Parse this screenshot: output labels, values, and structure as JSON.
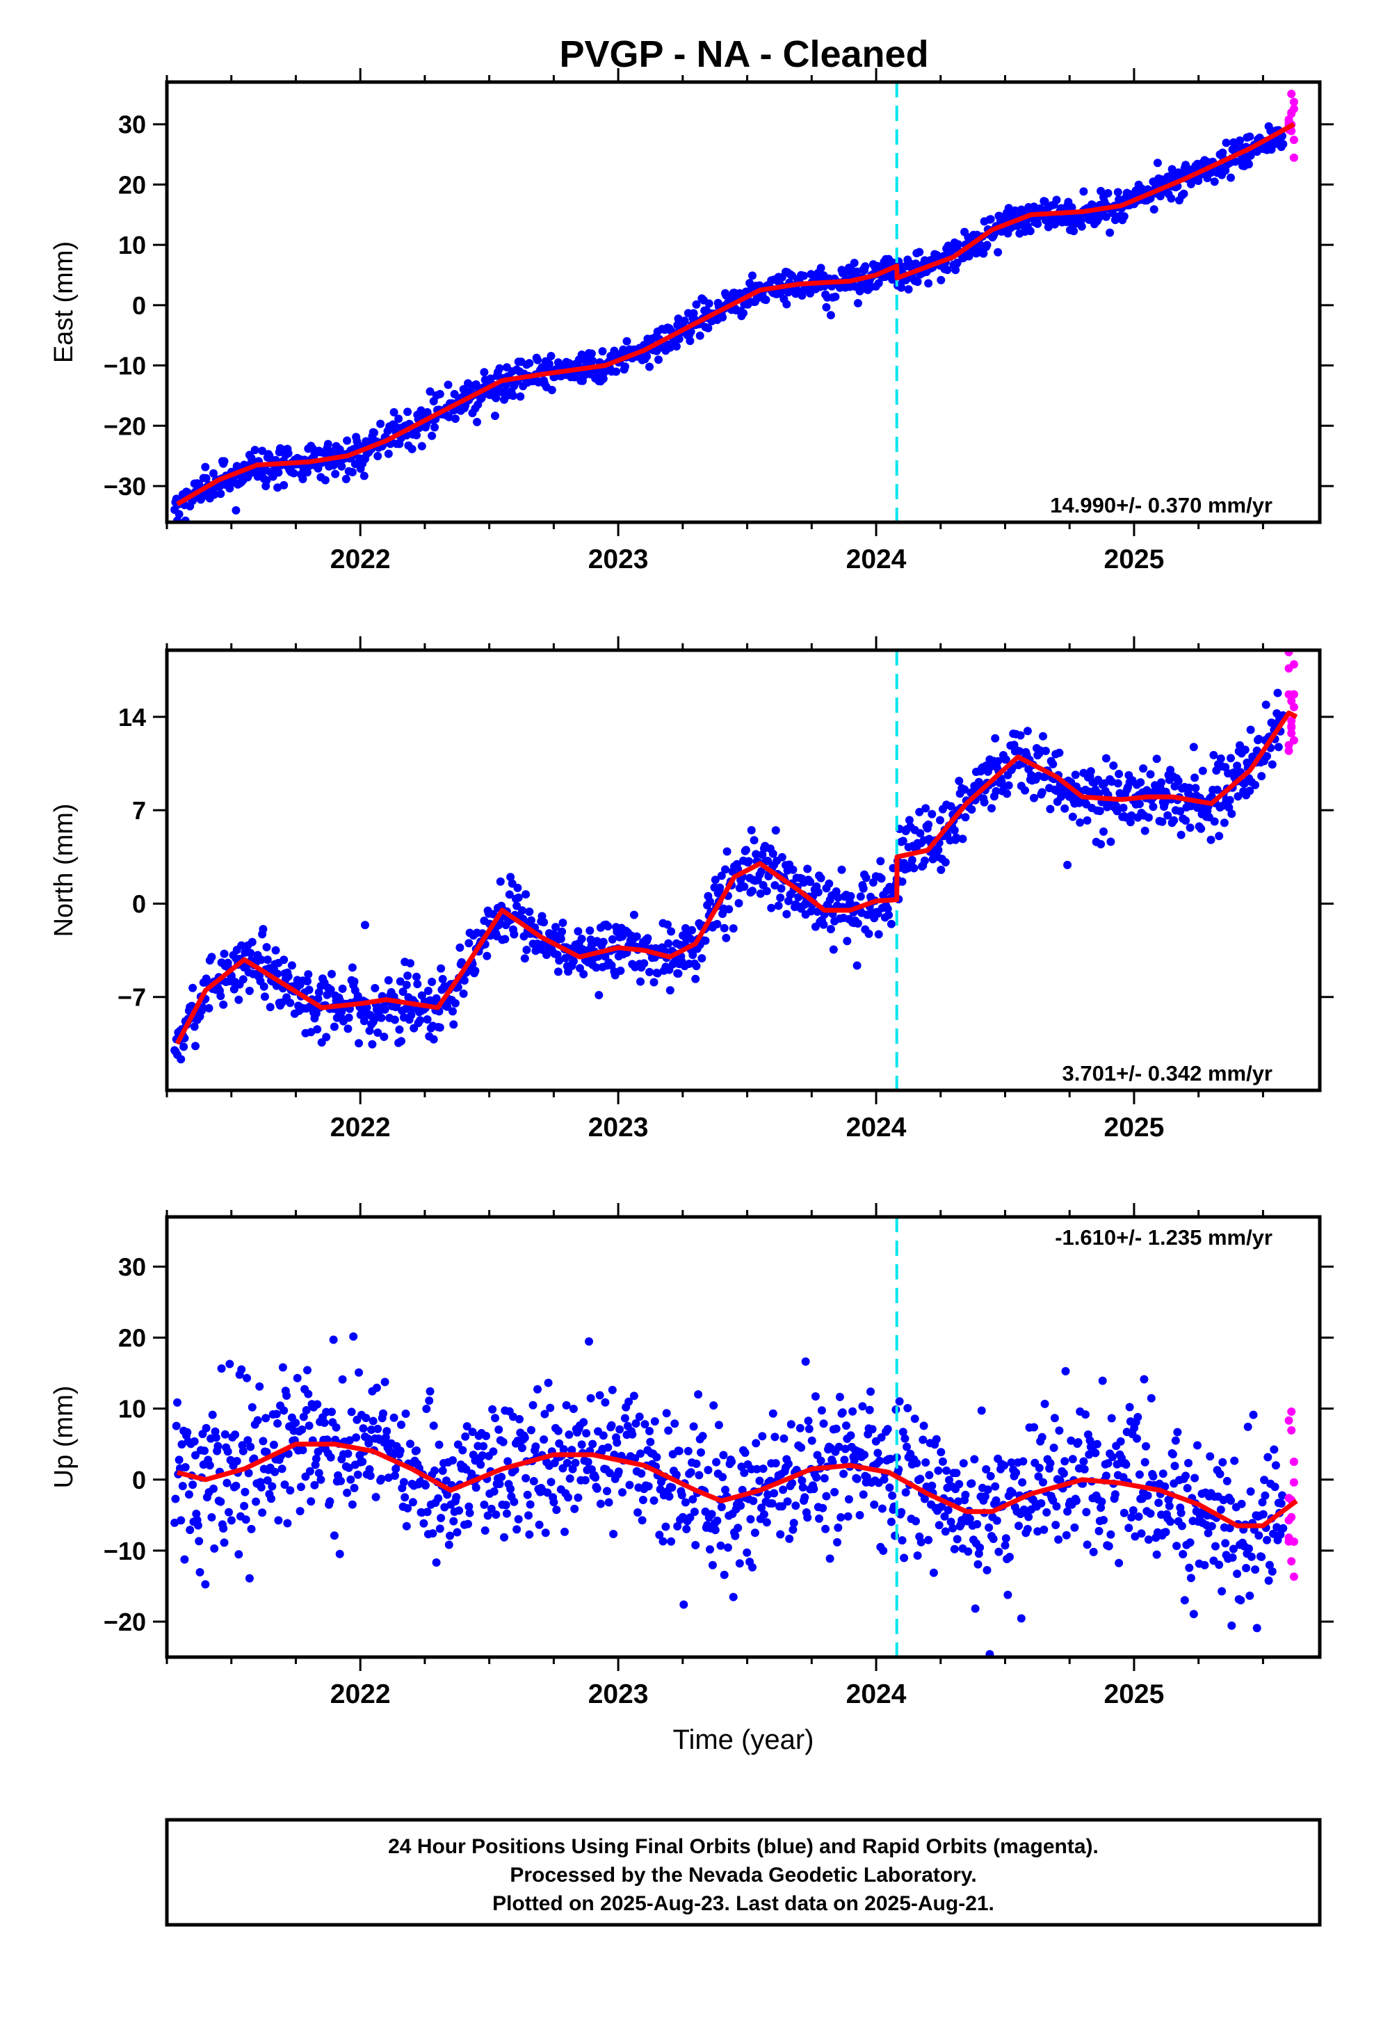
{
  "title": "PVGP  - NA - Cleaned",
  "colors": {
    "final": "#0000ff",
    "rapid": "#ff00ff",
    "model": "#ff0000",
    "offset_line": "#00e5ee",
    "frame": "#000000"
  },
  "chart_data": [
    {
      "type": "scatter",
      "ylabel": "East (mm)",
      "xlabel": "",
      "xlim": [
        2021.25,
        2025.72
      ],
      "ylim": [
        -36,
        37
      ],
      "yticks": [
        -30,
        -20,
        -10,
        0,
        10,
        20,
        30
      ],
      "xticks": [
        2022,
        2023,
        2024,
        2025
      ],
      "rate": "14.990+/- 0.370 mm/yr",
      "rate_position": "bottom-right",
      "offset_epoch": 2024.08,
      "model": {
        "x": [
          2021.29,
          2021.45,
          2021.6,
          2021.8,
          2021.95,
          2022.1,
          2022.3,
          2022.55,
          2022.7,
          2022.95,
          2023.1,
          2023.3,
          2023.55,
          2023.7,
          2023.9,
          2024.0,
          2024.08,
          2024.081,
          2024.3,
          2024.45,
          2024.6,
          2024.8,
          2024.95,
          2025.2,
          2025.45,
          2025.62
        ],
        "y": [
          -33,
          -29,
          -26.5,
          -26,
          -25,
          -22.5,
          -18,
          -12.5,
          -11.5,
          -10,
          -7.5,
          -3,
          2.5,
          3.5,
          4,
          5,
          6.5,
          4.5,
          8,
          12.5,
          15,
          15.5,
          16.5,
          21,
          26,
          30
        ]
      }
    },
    {
      "type": "scatter",
      "ylabel": "North (mm)",
      "xlabel": "",
      "xlim": [
        2021.25,
        2025.72
      ],
      "ylim": [
        -14,
        19
      ],
      "yticks": [
        -7,
        0,
        7,
        14
      ],
      "xticks": [
        2022,
        2023,
        2024,
        2025
      ],
      "rate": "3.701+/- 0.342 mm/yr",
      "rate_position": "bottom-right",
      "offset_epoch": 2024.08,
      "model": {
        "x": [
          2021.29,
          2021.4,
          2021.55,
          2021.7,
          2021.85,
          2022.0,
          2022.1,
          2022.2,
          2022.3,
          2022.4,
          2022.55,
          2022.7,
          2022.85,
          2023.0,
          2023.1,
          2023.2,
          2023.3,
          2023.45,
          2023.55,
          2023.7,
          2023.8,
          2023.9,
          2024.0,
          2024.08,
          2024.081,
          2024.2,
          2024.35,
          2024.55,
          2024.7,
          2024.8,
          2024.95,
          2025.05,
          2025.15,
          2025.3,
          2025.45,
          2025.6,
          2025.63
        ],
        "y": [
          -10.5,
          -6.5,
          -4.2,
          -6,
          -7.8,
          -7.5,
          -7.2,
          -7.5,
          -7.8,
          -5,
          -0.5,
          -2.5,
          -4,
          -3.3,
          -3.5,
          -4,
          -3,
          2,
          3,
          1,
          -0.5,
          -0.5,
          0.2,
          0.3,
          3.5,
          4,
          7.5,
          11,
          9.5,
          8,
          7.8,
          8,
          8,
          7.5,
          10,
          14.3,
          14
        ]
      }
    },
    {
      "type": "scatter",
      "ylabel": "Up (mm)",
      "xlabel": "Time (year)",
      "xlim": [
        2021.25,
        2025.72
      ],
      "ylim": [
        -25,
        37
      ],
      "yticks": [
        -20,
        -10,
        0,
        10,
        20,
        30
      ],
      "xticks": [
        2022,
        2023,
        2024,
        2025
      ],
      "rate": "-1.610+/- 1.235 mm/yr",
      "rate_position": "top-right",
      "offset_epoch": 2024.08,
      "model": {
        "x": [
          2021.29,
          2021.4,
          2021.55,
          2021.75,
          2021.9,
          2022.05,
          2022.2,
          2022.35,
          2022.55,
          2022.75,
          2022.9,
          2023.1,
          2023.3,
          2023.4,
          2023.55,
          2023.75,
          2023.9,
          2024.05,
          2024.2,
          2024.35,
          2024.45,
          2024.6,
          2024.8,
          2024.95,
          2025.1,
          2025.25,
          2025.4,
          2025.5,
          2025.63
        ],
        "y": [
          1,
          0,
          1.5,
          5,
          5,
          4,
          1.5,
          -1.5,
          1.5,
          3.5,
          3.5,
          2,
          -1.5,
          -3,
          -1.5,
          1.5,
          2,
          1,
          -2,
          -4.5,
          -4.5,
          -2,
          0,
          -0.5,
          -1.5,
          -3.5,
          -6.5,
          -6.5,
          -3
        ]
      }
    }
  ],
  "footer": {
    "line1": "24 Hour Positions Using Final Orbits (blue) and Rapid Orbits (magenta).",
    "line2": "Processed by the Nevada Geodetic Laboratory.",
    "line3": "Plotted on 2025-Aug-23. Last data on 2025-Aug-21."
  }
}
